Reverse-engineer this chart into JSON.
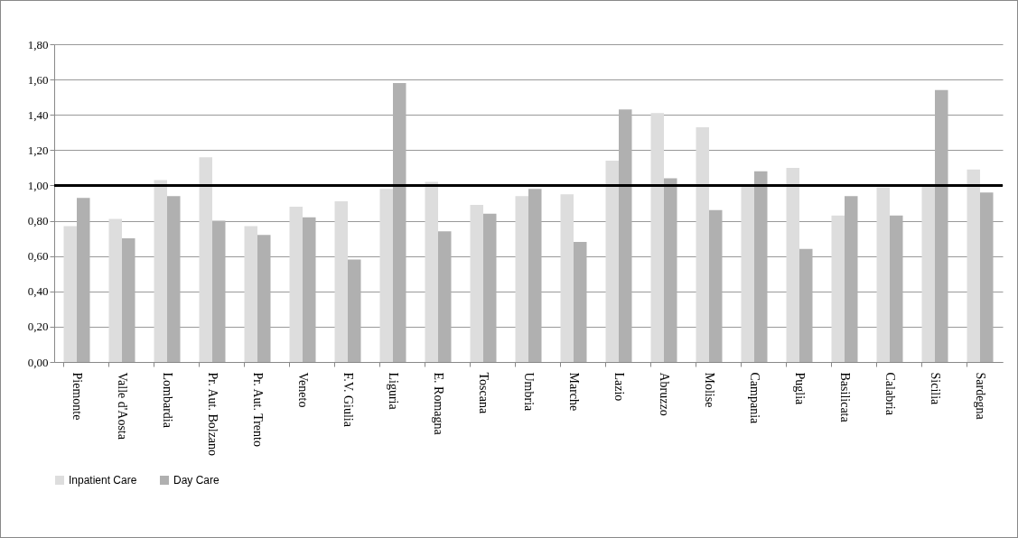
{
  "chart_data": {
    "type": "bar",
    "categories": [
      "Piemonte",
      "Valle d'Aosta",
      "Lombardia",
      "Pr. Aut. Bolzano",
      "Pr. Aut. Trento",
      "Veneto",
      "F.V. Giulia",
      "Liguria",
      "E. Romagna",
      "Toscana",
      "Umbria",
      "Marche",
      "Lazio",
      "Abruzzo",
      "Molise",
      "Campania",
      "Puglia",
      "Basilicata",
      "Calabria",
      "Sicilia",
      "Sardegna"
    ],
    "series": [
      {
        "name": "Inpatient Care",
        "color": "#dddddd",
        "values": [
          0.77,
          0.81,
          1.03,
          1.16,
          0.77,
          0.88,
          0.91,
          0.98,
          1.02,
          0.89,
          0.94,
          0.95,
          1.14,
          1.41,
          1.33,
          1.0,
          1.1,
          0.83,
          0.99,
          1.0,
          1.09
        ]
      },
      {
        "name": "Day Care",
        "color": "#b0b0b0",
        "values": [
          0.93,
          0.7,
          0.94,
          0.8,
          0.72,
          0.82,
          0.58,
          1.58,
          0.74,
          0.84,
          0.98,
          0.68,
          1.43,
          1.04,
          0.86,
          1.08,
          0.64,
          0.94,
          0.83,
          1.54,
          0.96
        ]
      }
    ],
    "ylim": [
      0,
      1.8
    ],
    "yticks": [
      {
        "value": 0,
        "label": "0,00"
      },
      {
        "value": 0.2,
        "label": "0,20"
      },
      {
        "value": 0.4,
        "label": "0,40"
      },
      {
        "value": 0.6,
        "label": "0,60"
      },
      {
        "value": 0.8,
        "label": "0,80"
      },
      {
        "value": 1,
        "label": "1,00"
      },
      {
        "value": 1.2,
        "label": "1,20"
      },
      {
        "value": 1.4,
        "label": "1,40"
      },
      {
        "value": 1.6,
        "label": "1,60"
      },
      {
        "value": 1.8,
        "label": "1,80"
      }
    ],
    "grid": "y",
    "legend": "bottom",
    "ref_lines": [
      {
        "axis": "y",
        "value": 1,
        "color": "#000000"
      }
    ]
  }
}
